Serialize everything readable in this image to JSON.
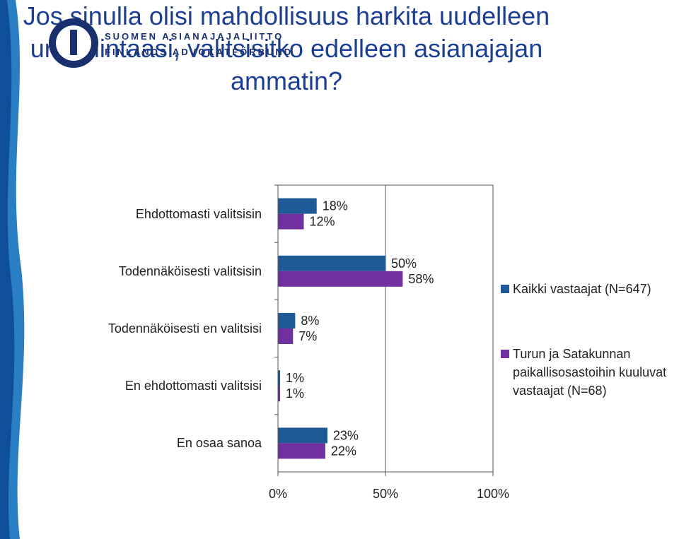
{
  "header": {
    "org_line_1": "SUOMEN ASIANAJAJALIITTO",
    "org_line_2": "FINLANDS ADVOKATFÖRBUND"
  },
  "chart_data": {
    "type": "bar",
    "orientation": "horizontal",
    "title": "Jos sinulla olisi mahdollisuus harkita uudelleen uravalintaasi, valitsisitko edelleen asianajajan ammatin?",
    "categories": [
      "Ehdottomasti valitsisin",
      "Todennäköisesti valitsisin",
      "Todennäköisesti en valitsisi",
      "En ehdottomasti valitsisi",
      "En osaa sanoa"
    ],
    "series": [
      {
        "name": "Kaikki vastaajat (N=647)",
        "color": "#1f5a96",
        "values": [
          18,
          50,
          8,
          1,
          23
        ],
        "value_labels": [
          "18%",
          "50%",
          "8%",
          "1%",
          "23%"
        ]
      },
      {
        "name": "Turun ja Satakunnan paikallisosastoihin kuuluvat vastaajat (N=68)",
        "color": "#7030a0",
        "values": [
          12,
          58,
          7,
          1,
          22
        ],
        "value_labels": [
          "12%",
          "58%",
          "7%",
          "1%",
          "22%"
        ]
      }
    ],
    "xlim": [
      0,
      100
    ],
    "xticks": [
      {
        "value": 0,
        "label": "0%"
      },
      {
        "value": 50,
        "label": "50%"
      },
      {
        "value": 100,
        "label": "100%"
      }
    ],
    "grid": true,
    "legend": "right"
  }
}
